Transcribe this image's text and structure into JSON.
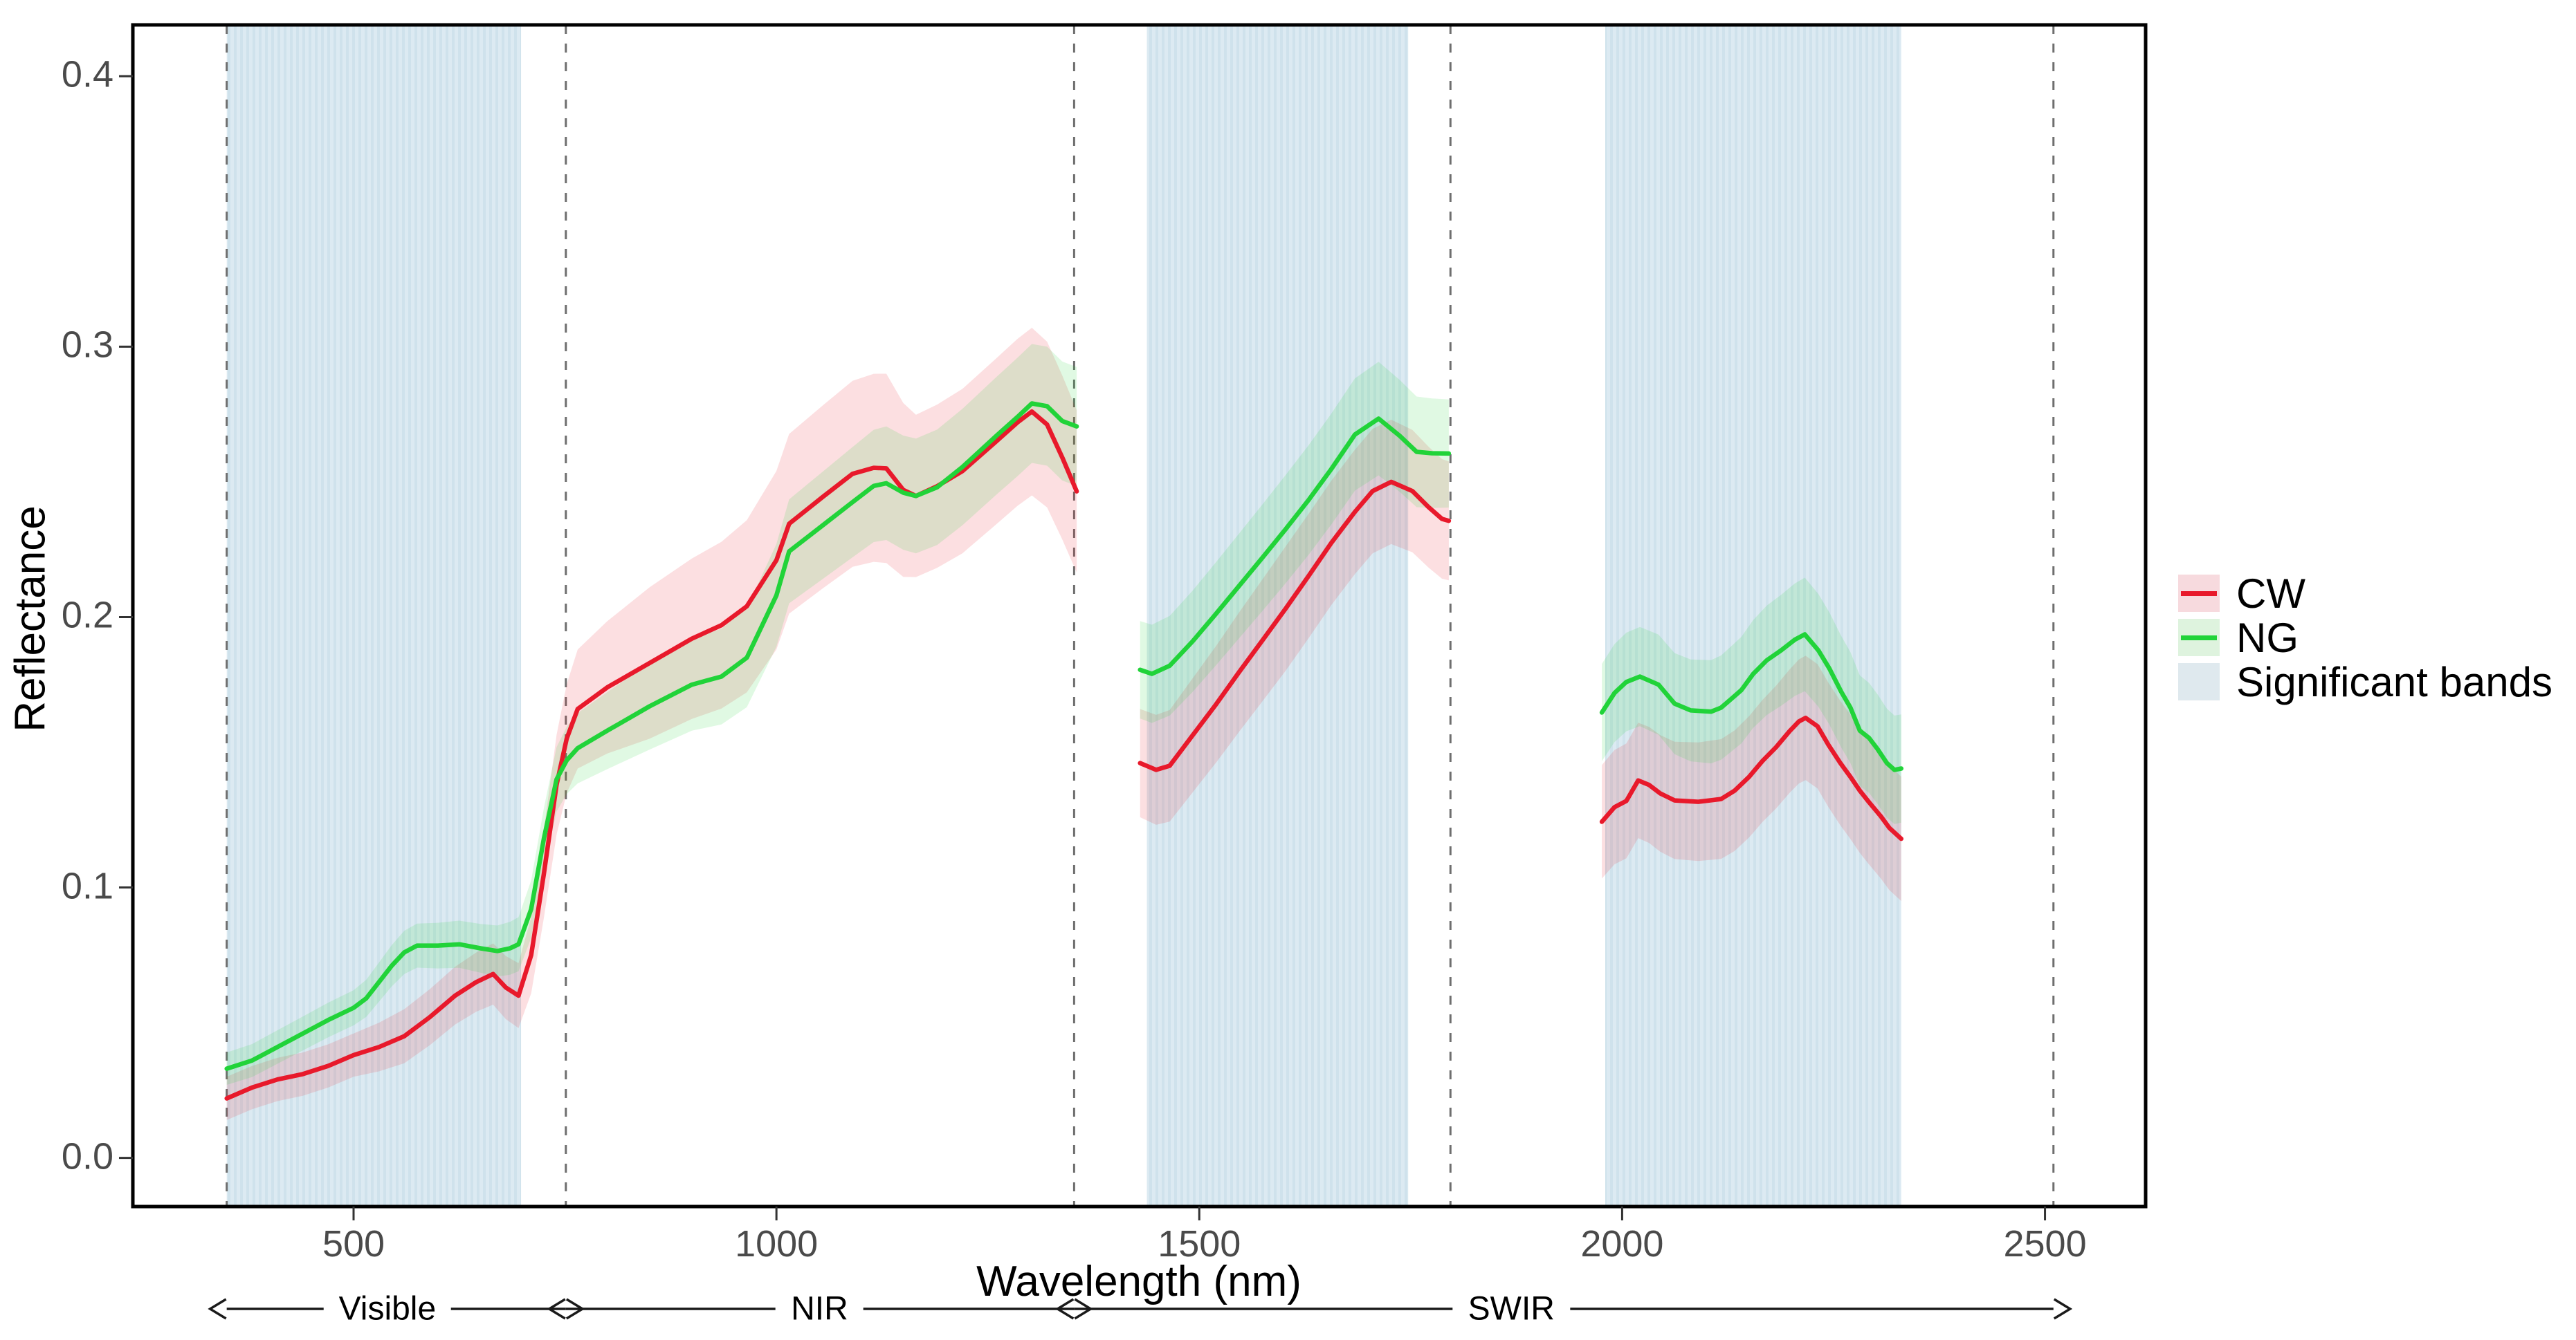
{
  "axes": {
    "y_title": "Reflectance",
    "x_title": "Wavelength (nm)"
  },
  "legend": {
    "items": [
      {
        "label": "CW",
        "type": "line",
        "line_color": "#e8192b",
        "fill_color": "#f7dade"
      },
      {
        "label": "NG",
        "type": "line",
        "line_color": "#21d339",
        "fill_color": "#def3de"
      },
      {
        "label": "Significant bands",
        "type": "fill",
        "line_color": "",
        "fill_color": "#dfe9ee"
      }
    ]
  },
  "chart_data": {
    "type": "line",
    "title": "",
    "xlabel": "Wavelength (nm)",
    "ylabel": "Reflectance",
    "xlim": [
      239,
      2619
    ],
    "ylim": [
      -0.018,
      0.419
    ],
    "grid": false,
    "legend_position": "right",
    "x_tick_values": [
      500,
      1000,
      1500,
      2000,
      2500
    ],
    "x_tick_labels": [
      "500",
      "1000",
      "1500",
      "2000",
      "2500"
    ],
    "y_tick_values": [
      0.0,
      0.1,
      0.2,
      0.3,
      0.4
    ],
    "y_tick_labels": [
      "0.0",
      "0.1",
      "0.2",
      "0.3",
      "0.4"
    ],
    "dashed_lines_nm": [
      350,
      751,
      1352,
      1797,
      2510
    ],
    "significant_bands_nm": [
      [
        350,
        698
      ],
      [
        1438,
        1747
      ],
      [
        1980,
        2330
      ]
    ],
    "band_fill": "#dceaf2",
    "band_stripe": "#cfe2ec",
    "dashed_line_color": "#6e6e6e",
    "region_arrows": [
      {
        "label": "Visible",
        "from_nm": 350,
        "to_nm": 751,
        "label_nm": 540
      },
      {
        "label": "NIR",
        "from_nm": 751,
        "to_nm": 1352,
        "label_nm": 1051
      },
      {
        "label": "SWIR",
        "from_nm": 1352,
        "to_nm": 2510,
        "label_nm": 1869
      }
    ],
    "series": [
      {
        "name": "CW",
        "color": "#e8192b",
        "ribbon_color": "rgba(237,28,43,0.14)",
        "segments": [
          {
            "points": [
              [
                350,
                0.022
              ],
              [
                380,
                0.026
              ],
              [
                410,
                0.029
              ],
              [
                440,
                0.031
              ],
              [
                470,
                0.034
              ],
              [
                500,
                0.038
              ],
              [
                530,
                0.041
              ],
              [
                560,
                0.045
              ],
              [
                590,
                0.052
              ],
              [
                620,
                0.06
              ],
              [
                645,
                0.065
              ],
              [
                665,
                0.068
              ],
              [
                680,
                0.063
              ],
              [
                695,
                0.06
              ],
              [
                710,
                0.075
              ],
              [
                725,
                0.105
              ],
              [
                740,
                0.138
              ],
              [
                752,
                0.155
              ],
              [
                765,
                0.166
              ],
              [
                800,
                0.174
              ],
              [
                850,
                0.183
              ],
              [
                900,
                0.192
              ],
              [
                935,
                0.197
              ],
              [
                965,
                0.204
              ],
              [
                1000,
                0.221
              ],
              [
                1015,
                0.2345
              ],
              [
                1055,
                0.2445
              ],
              [
                1090,
                0.253
              ],
              [
                1115,
                0.2552
              ],
              [
                1130,
                0.255
              ],
              [
                1150,
                0.247
              ],
              [
                1165,
                0.2448
              ],
              [
                1190,
                0.2484
              ],
              [
                1220,
                0.254
              ],
              [
                1260,
                0.265
              ],
              [
                1285,
                0.272
              ],
              [
                1302,
                0.276
              ],
              [
                1320,
                0.2712
              ],
              [
                1338,
                0.259
              ],
              [
                1355,
                0.2465
              ]
            ],
            "ribbon": [
              [
                350,
                0.008
              ],
              [
                500,
                0.008
              ],
              [
                560,
                0.01
              ],
              [
                650,
                0.011
              ],
              [
                695,
                0.012
              ],
              [
                765,
                0.022
              ],
              [
                850,
                0.028
              ],
              [
                1000,
                0.033
              ],
              [
                1130,
                0.035
              ],
              [
                1165,
                0.03
              ],
              [
                1302,
                0.031
              ],
              [
                1355,
                0.03
              ]
            ]
          },
          {
            "points": [
              [
                1430,
                0.146
              ],
              [
                1449,
                0.1435
              ],
              [
                1465,
                0.145
              ],
              [
                1492,
                0.1562
              ],
              [
                1520,
                0.1678
              ],
              [
                1547,
                0.1796
              ],
              [
                1574,
                0.1911
              ],
              [
                1602,
                0.2031
              ],
              [
                1629,
                0.2151
              ],
              [
                1656,
                0.2274
              ],
              [
                1684,
                0.2389
              ],
              [
                1705,
                0.2466
              ],
              [
                1727,
                0.25
              ],
              [
                1752,
                0.2466
              ],
              [
                1771,
                0.2407
              ],
              [
                1787,
                0.2363
              ],
              [
                1795,
                0.2356
              ]
            ],
            "ribbon": [
              [
                1430,
                0.02
              ],
              [
                1600,
                0.023
              ],
              [
                1727,
                0.023
              ],
              [
                1795,
                0.022
              ]
            ]
          },
          {
            "points": [
              [
                1976,
                0.1243
              ],
              [
                1991,
                0.1297
              ],
              [
                2005,
                0.132
              ],
              [
                2019,
                0.1396
              ],
              [
                2032,
                0.1379
              ],
              [
                2045,
                0.1348
              ],
              [
                2062,
                0.1322
              ],
              [
                2090,
                0.1317
              ],
              [
                2117,
                0.1327
              ],
              [
                2133,
                0.1358
              ],
              [
                2150,
                0.1409
              ],
              [
                2166,
                0.1468
              ],
              [
                2182,
                0.1519
              ],
              [
                2198,
                0.1578
              ],
              [
                2209,
                0.1614
              ],
              [
                2217,
                0.1627
              ],
              [
                2231,
                0.1596
              ],
              [
                2244,
                0.1527
              ],
              [
                2258,
                0.146
              ],
              [
                2270,
                0.1409
              ],
              [
                2281,
                0.1358
              ],
              [
                2292,
                0.1315
              ],
              [
                2306,
                0.1263
              ],
              [
                2316,
                0.122
              ],
              [
                2330,
                0.118
              ]
            ],
            "ribbon": [
              [
                1976,
                0.021
              ],
              [
                2100,
                0.022
              ],
              [
                2217,
                0.023
              ],
              [
                2330,
                0.023
              ]
            ]
          }
        ]
      },
      {
        "name": "NG",
        "color": "#21d339",
        "ribbon_color": "rgba(33,211,57,0.14)",
        "segments": [
          {
            "points": [
              [
                350,
                0.033
              ],
              [
                380,
                0.036
              ],
              [
                410,
                0.041
              ],
              [
                440,
                0.046
              ],
              [
                470,
                0.051
              ],
              [
                500,
                0.0555
              ],
              [
                515,
                0.059
              ],
              [
                530,
                0.065
              ],
              [
                545,
                0.071
              ],
              [
                560,
                0.076
              ],
              [
                575,
                0.0785
              ],
              [
                600,
                0.0785
              ],
              [
                625,
                0.079
              ],
              [
                650,
                0.0775
              ],
              [
                670,
                0.0765
              ],
              [
                685,
                0.0775
              ],
              [
                695,
                0.079
              ],
              [
                710,
                0.092
              ],
              [
                725,
                0.118
              ],
              [
                740,
                0.14
              ],
              [
                752,
                0.147
              ],
              [
                765,
                0.1515
              ],
              [
                800,
                0.158
              ],
              [
                850,
                0.167
              ],
              [
                900,
                0.175
              ],
              [
                935,
                0.178
              ],
              [
                965,
                0.185
              ],
              [
                1000,
                0.208
              ],
              [
                1015,
                0.2243
              ],
              [
                1055,
                0.234
              ],
              [
                1090,
                0.2425
              ],
              [
                1115,
                0.2485
              ],
              [
                1130,
                0.2495
              ],
              [
                1150,
                0.246
              ],
              [
                1165,
                0.2448
              ],
              [
                1190,
                0.248
              ],
              [
                1220,
                0.2555
              ],
              [
                1260,
                0.267
              ],
              [
                1285,
                0.274
              ],
              [
                1302,
                0.279
              ],
              [
                1320,
                0.278
              ],
              [
                1338,
                0.2725
              ],
              [
                1355,
                0.2705
              ]
            ],
            "ribbon": [
              [
                350,
                0.006
              ],
              [
                500,
                0.0065
              ],
              [
                560,
                0.008
              ],
              [
                650,
                0.009
              ],
              [
                695,
                0.01
              ],
              [
                765,
                0.013
              ],
              [
                850,
                0.016
              ],
              [
                1000,
                0.019
              ],
              [
                1130,
                0.021
              ],
              [
                1302,
                0.022
              ],
              [
                1355,
                0.022
              ]
            ]
          },
          {
            "points": [
              [
                1430,
                0.1805
              ],
              [
                1444,
                0.179
              ],
              [
                1465,
                0.182
              ],
              [
                1492,
                0.191
              ],
              [
                1520,
                0.2013
              ],
              [
                1547,
                0.2115
              ],
              [
                1574,
                0.2217
              ],
              [
                1602,
                0.2325
              ],
              [
                1629,
                0.2432
              ],
              [
                1656,
                0.2547
              ],
              [
                1670,
                0.2611
              ],
              [
                1684,
                0.2675
              ],
              [
                1712,
                0.2734
              ],
              [
                1737,
                0.267
              ],
              [
                1757,
                0.2611
              ],
              [
                1775,
                0.2606
              ],
              [
                1795,
                0.2605
              ]
            ],
            "ribbon": [
              [
                1430,
                0.018
              ],
              [
                1600,
                0.02
              ],
              [
                1712,
                0.021
              ],
              [
                1795,
                0.02
              ]
            ]
          },
          {
            "points": [
              [
                1976,
                0.1647
              ],
              [
                1991,
                0.1719
              ],
              [
                2005,
                0.176
              ],
              [
                2021,
                0.178
              ],
              [
                2043,
                0.175
              ],
              [
                2062,
                0.168
              ],
              [
                2081,
                0.1655
              ],
              [
                2105,
                0.165
              ],
              [
                2117,
                0.1665
              ],
              [
                2130,
                0.17
              ],
              [
                2141,
                0.173
              ],
              [
                2155,
                0.179
              ],
              [
                2171,
                0.184
              ],
              [
                2188,
                0.1877
              ],
              [
                2204,
                0.1916
              ],
              [
                2216,
                0.1936
              ],
              [
                2232,
                0.1877
              ],
              [
                2245,
                0.181
              ],
              [
                2259,
                0.1724
              ],
              [
                2270,
                0.1665
              ],
              [
                2281,
                0.158
              ],
              [
                2292,
                0.1553
              ],
              [
                2302,
                0.1512
              ],
              [
                2313,
                0.146
              ],
              [
                2322,
                0.1435
              ],
              [
                2330,
                0.144
              ]
            ],
            "ribbon": [
              [
                1976,
                0.018
              ],
              [
                2100,
                0.019
              ],
              [
                2216,
                0.021
              ],
              [
                2330,
                0.02
              ]
            ]
          }
        ]
      }
    ]
  }
}
